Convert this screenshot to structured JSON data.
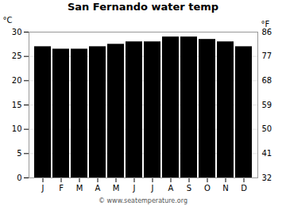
{
  "chart_data": {
    "type": "bar",
    "title": "San Fernando water temp",
    "categories": [
      "J",
      "F",
      "M",
      "A",
      "M",
      "J",
      "J",
      "A",
      "S",
      "O",
      "N",
      "D"
    ],
    "values": [
      27.0,
      26.5,
      26.5,
      27.0,
      27.5,
      28.0,
      28.0,
      29.0,
      29.0,
      28.5,
      28.0,
      27.0
    ],
    "ylabel": "°C",
    "y2label": "°F",
    "ylim": [
      0,
      30
    ],
    "yticks": [
      0,
      5,
      10,
      15,
      20,
      25,
      30
    ],
    "y2lim": [
      32,
      86
    ],
    "y2ticks": [
      32,
      41,
      50,
      59,
      68,
      77,
      86
    ],
    "grid": true,
    "annotations": [
      "© www.seatemperature.org"
    ]
  }
}
